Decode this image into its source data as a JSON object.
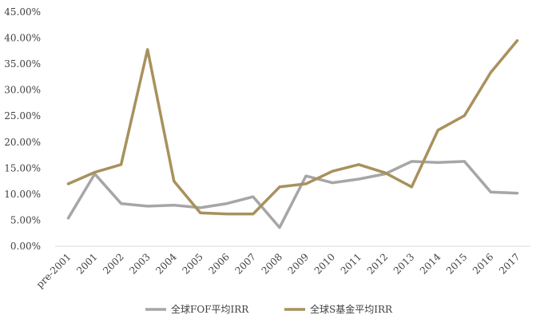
{
  "chart_data": {
    "type": "line",
    "title": "",
    "xlabel": "",
    "ylabel": "",
    "categories": [
      "pre-2001",
      "2001",
      "2002",
      "2003",
      "2004",
      "2005",
      "2006",
      "2007",
      "2008",
      "2009",
      "2010",
      "2011",
      "2012",
      "2013",
      "2014",
      "2015",
      "2016",
      "2017"
    ],
    "ylim": [
      0,
      45
    ],
    "yticks": [
      "0.00%",
      "5.00%",
      "10.00%",
      "15.00%",
      "20.00%",
      "25.00%",
      "30.00%",
      "35.00%",
      "40.00%",
      "45.00%"
    ],
    "grid": false,
    "legend_position": "bottom",
    "series": [
      {
        "name": "全球FOF平均IRR",
        "color": "#a6a6a6",
        "values": [
          5.4,
          13.9,
          8.2,
          7.7,
          7.9,
          7.4,
          8.2,
          9.5,
          3.6,
          13.5,
          12.2,
          12.9,
          13.9,
          16.3,
          16.1,
          16.3,
          10.4,
          10.2
        ]
      },
      {
        "name": "全球S基金平均IRR",
        "color": "#a8915c",
        "values": [
          12.0,
          14.2,
          15.7,
          37.8,
          12.5,
          6.4,
          6.2,
          6.2,
          11.4,
          12.0,
          14.4,
          15.7,
          14.1,
          11.4,
          22.3,
          25.1,
          33.4,
          39.5
        ]
      }
    ]
  }
}
